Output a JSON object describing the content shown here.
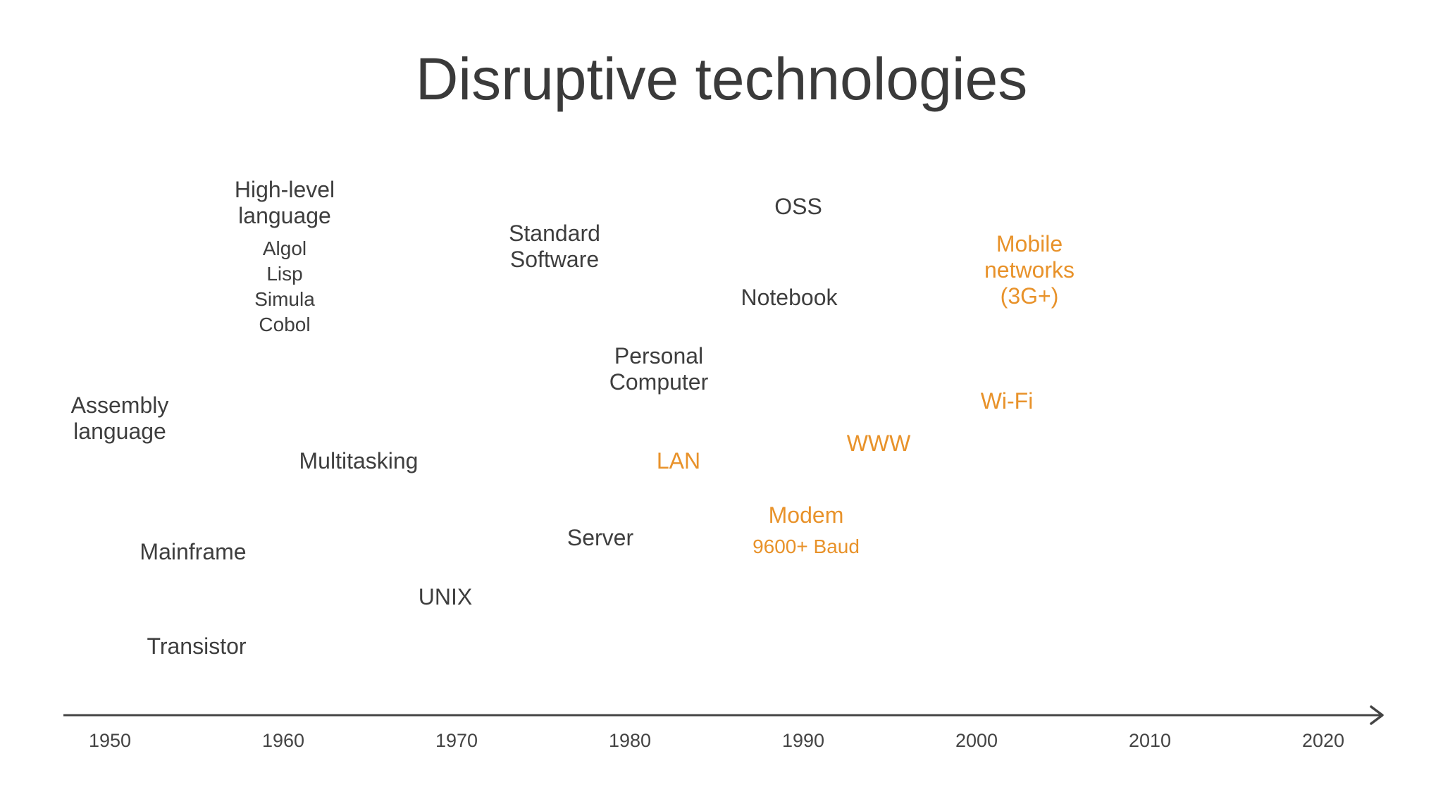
{
  "title": "Disruptive technologies",
  "colors": {
    "text": "#3e3e3e",
    "network": "#e8922a",
    "axis": "#444444"
  },
  "axis": {
    "ticks": [
      "1950",
      "1960",
      "1970",
      "1980",
      "1990",
      "2000",
      "2010",
      "2020"
    ]
  },
  "items": {
    "high_level": {
      "lines": [
        "High-level",
        "language"
      ],
      "sub": [
        "Algol",
        "Lisp",
        "Simula",
        "Cobol"
      ]
    },
    "standard_software": {
      "lines": [
        "Standard",
        "Software"
      ]
    },
    "oss": {
      "lines": [
        "OSS"
      ]
    },
    "mobile": {
      "lines": [
        "Mobile",
        "networks",
        "(3G+)"
      ]
    },
    "notebook": {
      "lines": [
        "Notebook"
      ]
    },
    "personal_computer": {
      "lines": [
        "Personal",
        "Computer"
      ]
    },
    "assembly": {
      "lines": [
        "Assembly",
        "language"
      ]
    },
    "wifi": {
      "lines": [
        "Wi-Fi"
      ]
    },
    "www": {
      "lines": [
        "WWW"
      ]
    },
    "multitasking": {
      "lines": [
        "Multitasking"
      ]
    },
    "lan": {
      "lines": [
        "LAN"
      ]
    },
    "modem": {
      "lines": [
        "Modem"
      ],
      "sub": [
        "9600+ Baud"
      ]
    },
    "server": {
      "lines": [
        "Server"
      ]
    },
    "mainframe": {
      "lines": [
        "Mainframe"
      ]
    },
    "unix": {
      "lines": [
        "UNIX"
      ]
    },
    "transistor": {
      "lines": [
        "Transistor"
      ]
    }
  }
}
